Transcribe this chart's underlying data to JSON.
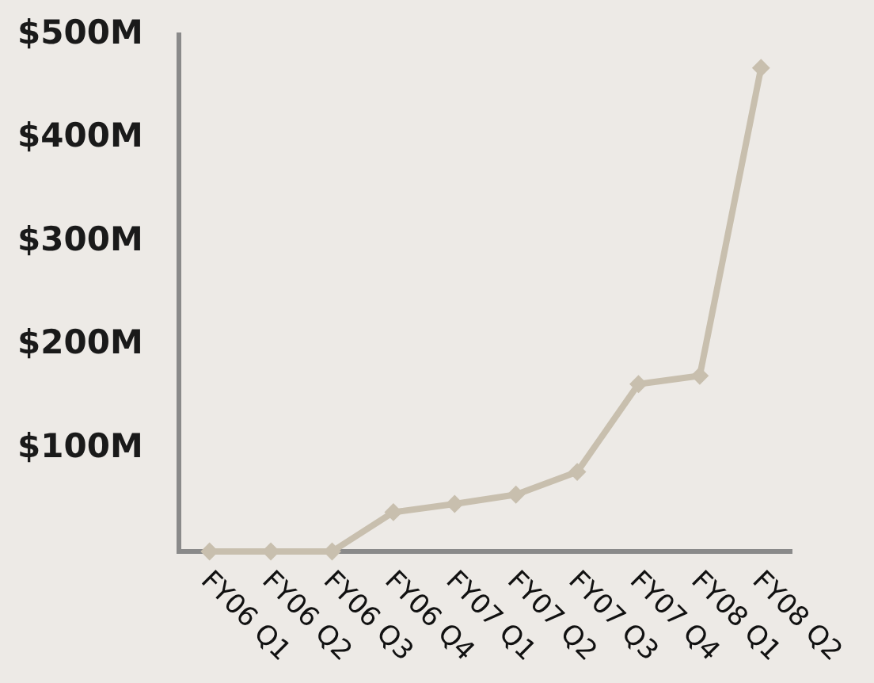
{
  "chart_data": {
    "type": "line",
    "categories": [
      "FY06 Q1",
      "FY06 Q2",
      "FY06 Q3",
      "FY06 Q4",
      "FY07 Q1",
      "FY07 Q2",
      "FY07 Q3",
      "FY07 Q4",
      "FY08 Q1",
      "FY08 Q2"
    ],
    "values": [
      0,
      0,
      0,
      38,
      46,
      55,
      77,
      162,
      170,
      468
    ],
    "color": "#c8bfae",
    "ylim": [
      0,
      500
    ],
    "yticks": [
      {
        "value": 100,
        "label": "$100M"
      },
      {
        "value": 200,
        "label": "$200M"
      },
      {
        "value": 300,
        "label": "$300M"
      },
      {
        "value": 400,
        "label": "$400M"
      },
      {
        "value": 500,
        "label": "$500M"
      }
    ],
    "marker": "diamond",
    "line_style": "solid",
    "grid": false,
    "legend": false
  }
}
